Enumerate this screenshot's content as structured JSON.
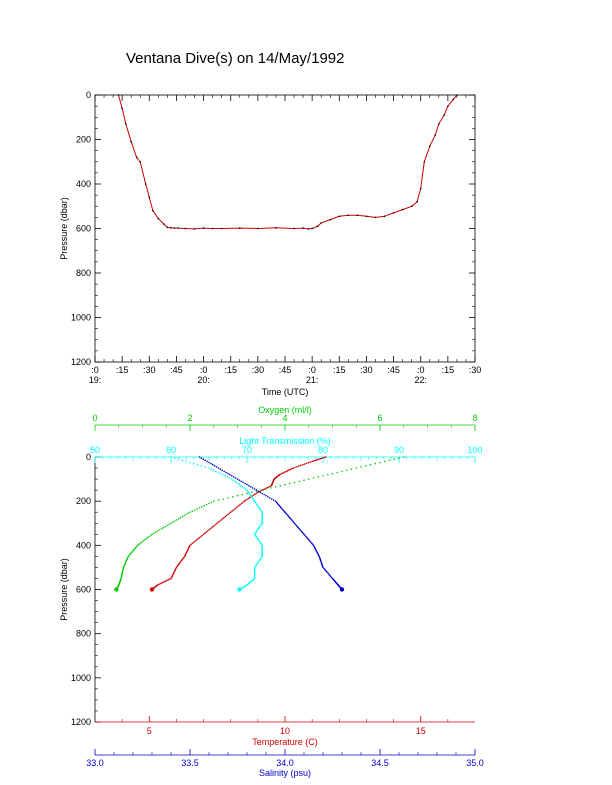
{
  "title": "Ventana Dive(s) on 14/May/1992",
  "colors": {
    "background": "#ffffff",
    "axis": "#000000",
    "temperature": "#cc0000",
    "salinity": "#0000cc",
    "oxygen": "#00cc00",
    "transmission": "#00ffff"
  },
  "chart_data": [
    {
      "type": "line",
      "ylabel": "Pressure (dbar)",
      "xlabel": "Time (UTC)",
      "ylim": [
        1200,
        0
      ],
      "y_ticks": [
        "0",
        "200",
        "400",
        "600",
        "800",
        "1000",
        "1200"
      ],
      "x_ticks": [
        ":0\n19:",
        ":15",
        ":30",
        ":45",
        ":0\n20:",
        ":15",
        ":30",
        ":45",
        ":0\n21:",
        ":15",
        ":30",
        ":45",
        ":0\n22:",
        ":15",
        ":30"
      ],
      "xlim_minutes": [
        0,
        210
      ],
      "series": [
        {
          "color": "#cc0000",
          "x_minutes": [
            13,
            15,
            17,
            20,
            23,
            25,
            28,
            30,
            32,
            35,
            38,
            40,
            42,
            44,
            46,
            50,
            55,
            60,
            65,
            70,
            80,
            90,
            100,
            110,
            115,
            118,
            120,
            123,
            125,
            130,
            135,
            140,
            145,
            150,
            155,
            160,
            165,
            170,
            175,
            178,
            180,
            182,
            185,
            188,
            190,
            193,
            195,
            198,
            200
          ],
          "y": [
            0,
            60,
            130,
            210,
            280,
            300,
            400,
            460,
            520,
            555,
            580,
            595,
            597,
            598,
            598,
            600,
            602,
            598,
            600,
            600,
            598,
            600,
            597,
            600,
            598,
            602,
            600,
            590,
            575,
            560,
            545,
            540,
            540,
            545,
            550,
            545,
            530,
            515,
            500,
            480,
            420,
            300,
            230,
            180,
            130,
            90,
            50,
            20,
            0
          ]
        }
      ]
    },
    {
      "type": "scatter",
      "ylabel": "Pressure (dbar)",
      "ylim": [
        1200,
        0
      ],
      "y_ticks": [
        "0",
        "200",
        "400",
        "600",
        "800",
        "1000",
        "1200"
      ],
      "axes": {
        "oxygen": {
          "label": "Oxygen (ml/l)",
          "range": [
            0,
            8
          ],
          "ticks": [
            "0",
            "2",
            "4",
            "6",
            "8"
          ]
        },
        "transmission": {
          "label": "Light Transmission (%)",
          "range": [
            50,
            100
          ],
          "ticks": [
            "50",
            "60",
            "70",
            "80",
            "90",
            "100"
          ]
        },
        "temperature": {
          "label": "Temperature (C)",
          "range": [
            3.0,
            17.0
          ],
          "ticks": [
            "5",
            "10",
            "15"
          ]
        },
        "salinity": {
          "label": "Salinity (psu)",
          "range": [
            33.0,
            35.0
          ],
          "ticks": [
            "33.0",
            "33.5",
            "34.0",
            "34.5",
            "35.0"
          ]
        }
      },
      "series": [
        {
          "name": "Temperature (C)",
          "color": "#cc0000",
          "pressure": [
            0,
            20,
            50,
            80,
            100,
            130,
            160,
            200,
            250,
            300,
            350,
            400,
            450,
            500,
            550,
            580,
            600
          ],
          "values": [
            11.5,
            11.0,
            10.3,
            9.8,
            9.6,
            9.5,
            9.0,
            8.5,
            8.0,
            7.5,
            7.0,
            6.5,
            6.3,
            6.0,
            5.8,
            5.3,
            5.1
          ]
        },
        {
          "name": "Salinity (psu)",
          "color": "#0000cc",
          "pressure": [
            0,
            50,
            100,
            150,
            200,
            250,
            300,
            350,
            400,
            450,
            500,
            550,
            580,
            600
          ],
          "values": [
            33.55,
            33.65,
            33.75,
            33.85,
            33.95,
            34.0,
            34.05,
            34.1,
            34.15,
            34.18,
            34.2,
            34.25,
            34.28,
            34.3
          ]
        },
        {
          "name": "Oxygen (ml/l)",
          "color": "#00cc00",
          "pressure": [
            0,
            50,
            100,
            150,
            200,
            250,
            300,
            350,
            400,
            450,
            500,
            550,
            580,
            600
          ],
          "values": [
            6.5,
            5.5,
            4.5,
            3.5,
            2.5,
            2.0,
            1.6,
            1.2,
            0.9,
            0.7,
            0.6,
            0.55,
            0.5,
            0.45
          ]
        },
        {
          "name": "Light Transmission (%)",
          "color": "#00ffff",
          "pressure": [
            0,
            50,
            100,
            150,
            200,
            250,
            300,
            350,
            400,
            450,
            500,
            550,
            580,
            600
          ],
          "values": [
            60,
            65,
            68,
            70,
            71,
            72,
            72,
            71,
            72,
            72,
            71,
            71,
            70,
            69
          ]
        }
      ]
    }
  ]
}
